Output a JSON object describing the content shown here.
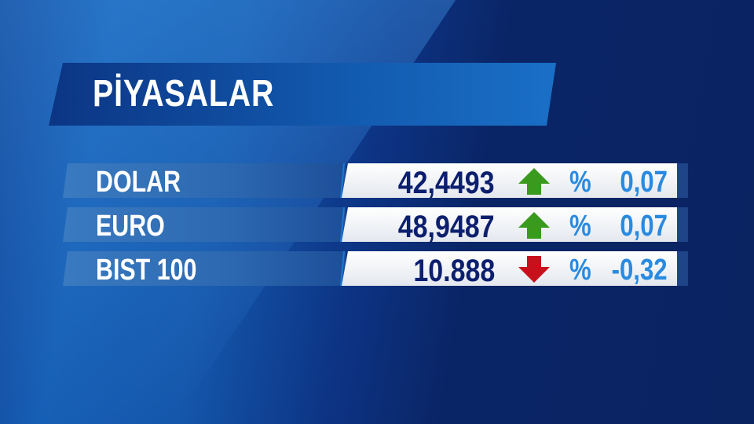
{
  "title": "PİYASALAR",
  "colors": {
    "up": "#3a9a1e",
    "down": "#c8101c",
    "value": "#0c1f6e",
    "change": "#2a8ae0"
  },
  "rows": [
    {
      "label": "DOLAR",
      "value": "42,4493",
      "direction": "up",
      "percent_sign": "%",
      "change": "0,07"
    },
    {
      "label": "EURO",
      "value": "48,9487",
      "direction": "up",
      "percent_sign": "%",
      "change": "0,07"
    },
    {
      "label": "BIST 100",
      "value": "10.888",
      "direction": "down",
      "percent_sign": "%",
      "change": "-0,32"
    }
  ]
}
